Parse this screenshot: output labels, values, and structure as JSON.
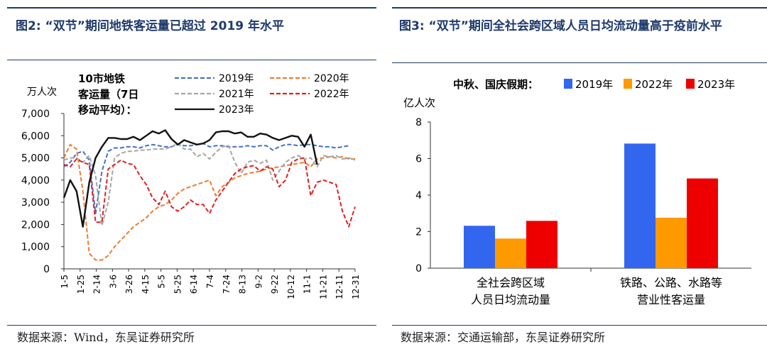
{
  "left_panel": {
    "title": "图2: “双节”期间地铁客运量已超过 2019 年水平",
    "source": "数据来源：Wind，东吴证券研究所"
  },
  "right_panel": {
    "title": "图3: “双节”期间全社会跨区域人员日均流动量高于疫前水平",
    "source": "数据来源：交通运输部，东吴证券研究所"
  },
  "chart_data": [
    {
      "type": "line",
      "title": "",
      "legend_caption": "10市地铁客运量（7日移动平均）：",
      "ylabel": "万人次",
      "xlabel": "",
      "ylim": [
        0,
        7000
      ],
      "yticks": [
        "0",
        "1,000",
        "2,000",
        "3,000",
        "4,000",
        "5,000",
        "6,000",
        "7,000"
      ],
      "yticks_values": [
        0,
        1000,
        2000,
        3000,
        4000,
        5000,
        6000,
        7000
      ],
      "x_ticks": [
        "1-5",
        "1-25",
        "2-14",
        "3-6",
        "3-26",
        "4-15",
        "5-5",
        "5-25",
        "6-14",
        "7-4",
        "7-24",
        "8-13",
        "9-2",
        "9-22",
        "10-12",
        "11-1",
        "11-21",
        "12-11",
        "12-31"
      ],
      "legend_placement": "top",
      "grid": false,
      "series": [
        {
          "name": "2019年",
          "color": "#4472c4",
          "dash": "dash",
          "values": [
            4600,
            4800,
            5200,
            5300,
            4900,
            2500,
            4400,
            5300,
            5450,
            5450,
            5500,
            5500,
            5450,
            5550,
            5600,
            5550,
            5500,
            5500,
            5600,
            5550,
            5550,
            5600,
            5650,
            5500,
            5550,
            5550,
            5500,
            5500,
            5500,
            5550,
            5500,
            5550,
            5550,
            5350,
            5500,
            5600,
            5600,
            5550,
            5600,
            5600,
            5550,
            5500,
            5500,
            5450,
            5500,
            5550
          ]
        },
        {
          "name": "2020年",
          "color": "#ed7d31",
          "dash": "dash",
          "values": [
            5000,
            5600,
            5400,
            3500,
            700,
            400,
            400,
            600,
            1000,
            1300,
            1600,
            1900,
            2100,
            2300,
            2600,
            2800,
            2900,
            3100,
            3400,
            3600,
            3700,
            3800,
            3900,
            4000,
            3300,
            3700,
            3900,
            4100,
            4200,
            4300,
            4350,
            4400,
            4500,
            4550,
            4600,
            4650,
            4700,
            4750,
            4800,
            4600,
            4950,
            5000,
            5050,
            5000,
            5050,
            4950,
            4950
          ]
        },
        {
          "name": "2021年",
          "color": "#a6a6a6",
          "dash": "dash",
          "values": [
            4900,
            5000,
            5000,
            4800,
            5100,
            4200,
            1950,
            3000,
            5000,
            5200,
            5300,
            5300,
            5350,
            5350,
            5400,
            5400,
            5400,
            5500,
            5650,
            5400,
            5400,
            5050,
            5200,
            4950,
            5250,
            5500,
            5550,
            4800,
            4300,
            4800,
            4900,
            4750,
            4900,
            4000,
            4400,
            4800,
            5000,
            5100,
            4950,
            5000,
            4600,
            5100,
            5050,
            5100,
            4950,
            5000,
            4900
          ]
        },
        {
          "name": "2022年",
          "color": "#e02020",
          "dash": "dash",
          "values": [
            4700,
            4600,
            4950,
            4800,
            4700,
            2100,
            2100,
            4500,
            4700,
            4900,
            4750,
            4700,
            4200,
            3800,
            3200,
            2900,
            3500,
            2800,
            2600,
            2800,
            3100,
            2900,
            2900,
            2500,
            3100,
            3500,
            3900,
            4300,
            4500,
            4600,
            4650,
            4400,
            4600,
            4500,
            3700,
            4000,
            4800,
            4950,
            5000,
            3300,
            3900,
            4000,
            3900,
            3800,
            2600,
            1900,
            2800
          ]
        },
        {
          "name": "2023年",
          "color": "#111111",
          "dash": "solid",
          "values": [
            3200,
            4000,
            3500,
            1900,
            3900,
            5000,
            5500,
            5900,
            5900,
            5850,
            5850,
            5950,
            5800,
            6000,
            6200,
            6100,
            6250,
            5850,
            5600,
            5800,
            5700,
            5600,
            5650,
            5800,
            6150,
            6200,
            6200,
            6100,
            6150,
            5950,
            5950,
            6100,
            6050,
            5900,
            5800,
            5900,
            6000,
            5950,
            5500,
            6050,
            4700
          ]
        }
      ]
    },
    {
      "type": "bar",
      "title": "",
      "legend_caption": "中秋、国庆假期：",
      "ylabel": "亿人次",
      "xlabel": "",
      "ylim": [
        0,
        8
      ],
      "yticks": [
        "0",
        "2",
        "4",
        "6",
        "8"
      ],
      "yticks_values": [
        0,
        2,
        4,
        6,
        8
      ],
      "categories": [
        "全社会跨区域人员日均流动量",
        "铁路、公路、水路等营业性客运量"
      ],
      "category_lines": [
        [
          "全社会跨区域",
          "人员日均流动量"
        ],
        [
          "铁路、公路、水路等",
          "营业性客运量"
        ]
      ],
      "legend_placement": "top",
      "grid": false,
      "series": [
        {
          "name": "2019年",
          "color": "#3366ee",
          "values": [
            2.32,
            6.82
          ]
        },
        {
          "name": "2022年",
          "color": "#ff9900",
          "values": [
            1.62,
            2.76
          ]
        },
        {
          "name": "2023年",
          "color": "#ee0000",
          "values": [
            2.59,
            4.91
          ]
        }
      ]
    }
  ]
}
